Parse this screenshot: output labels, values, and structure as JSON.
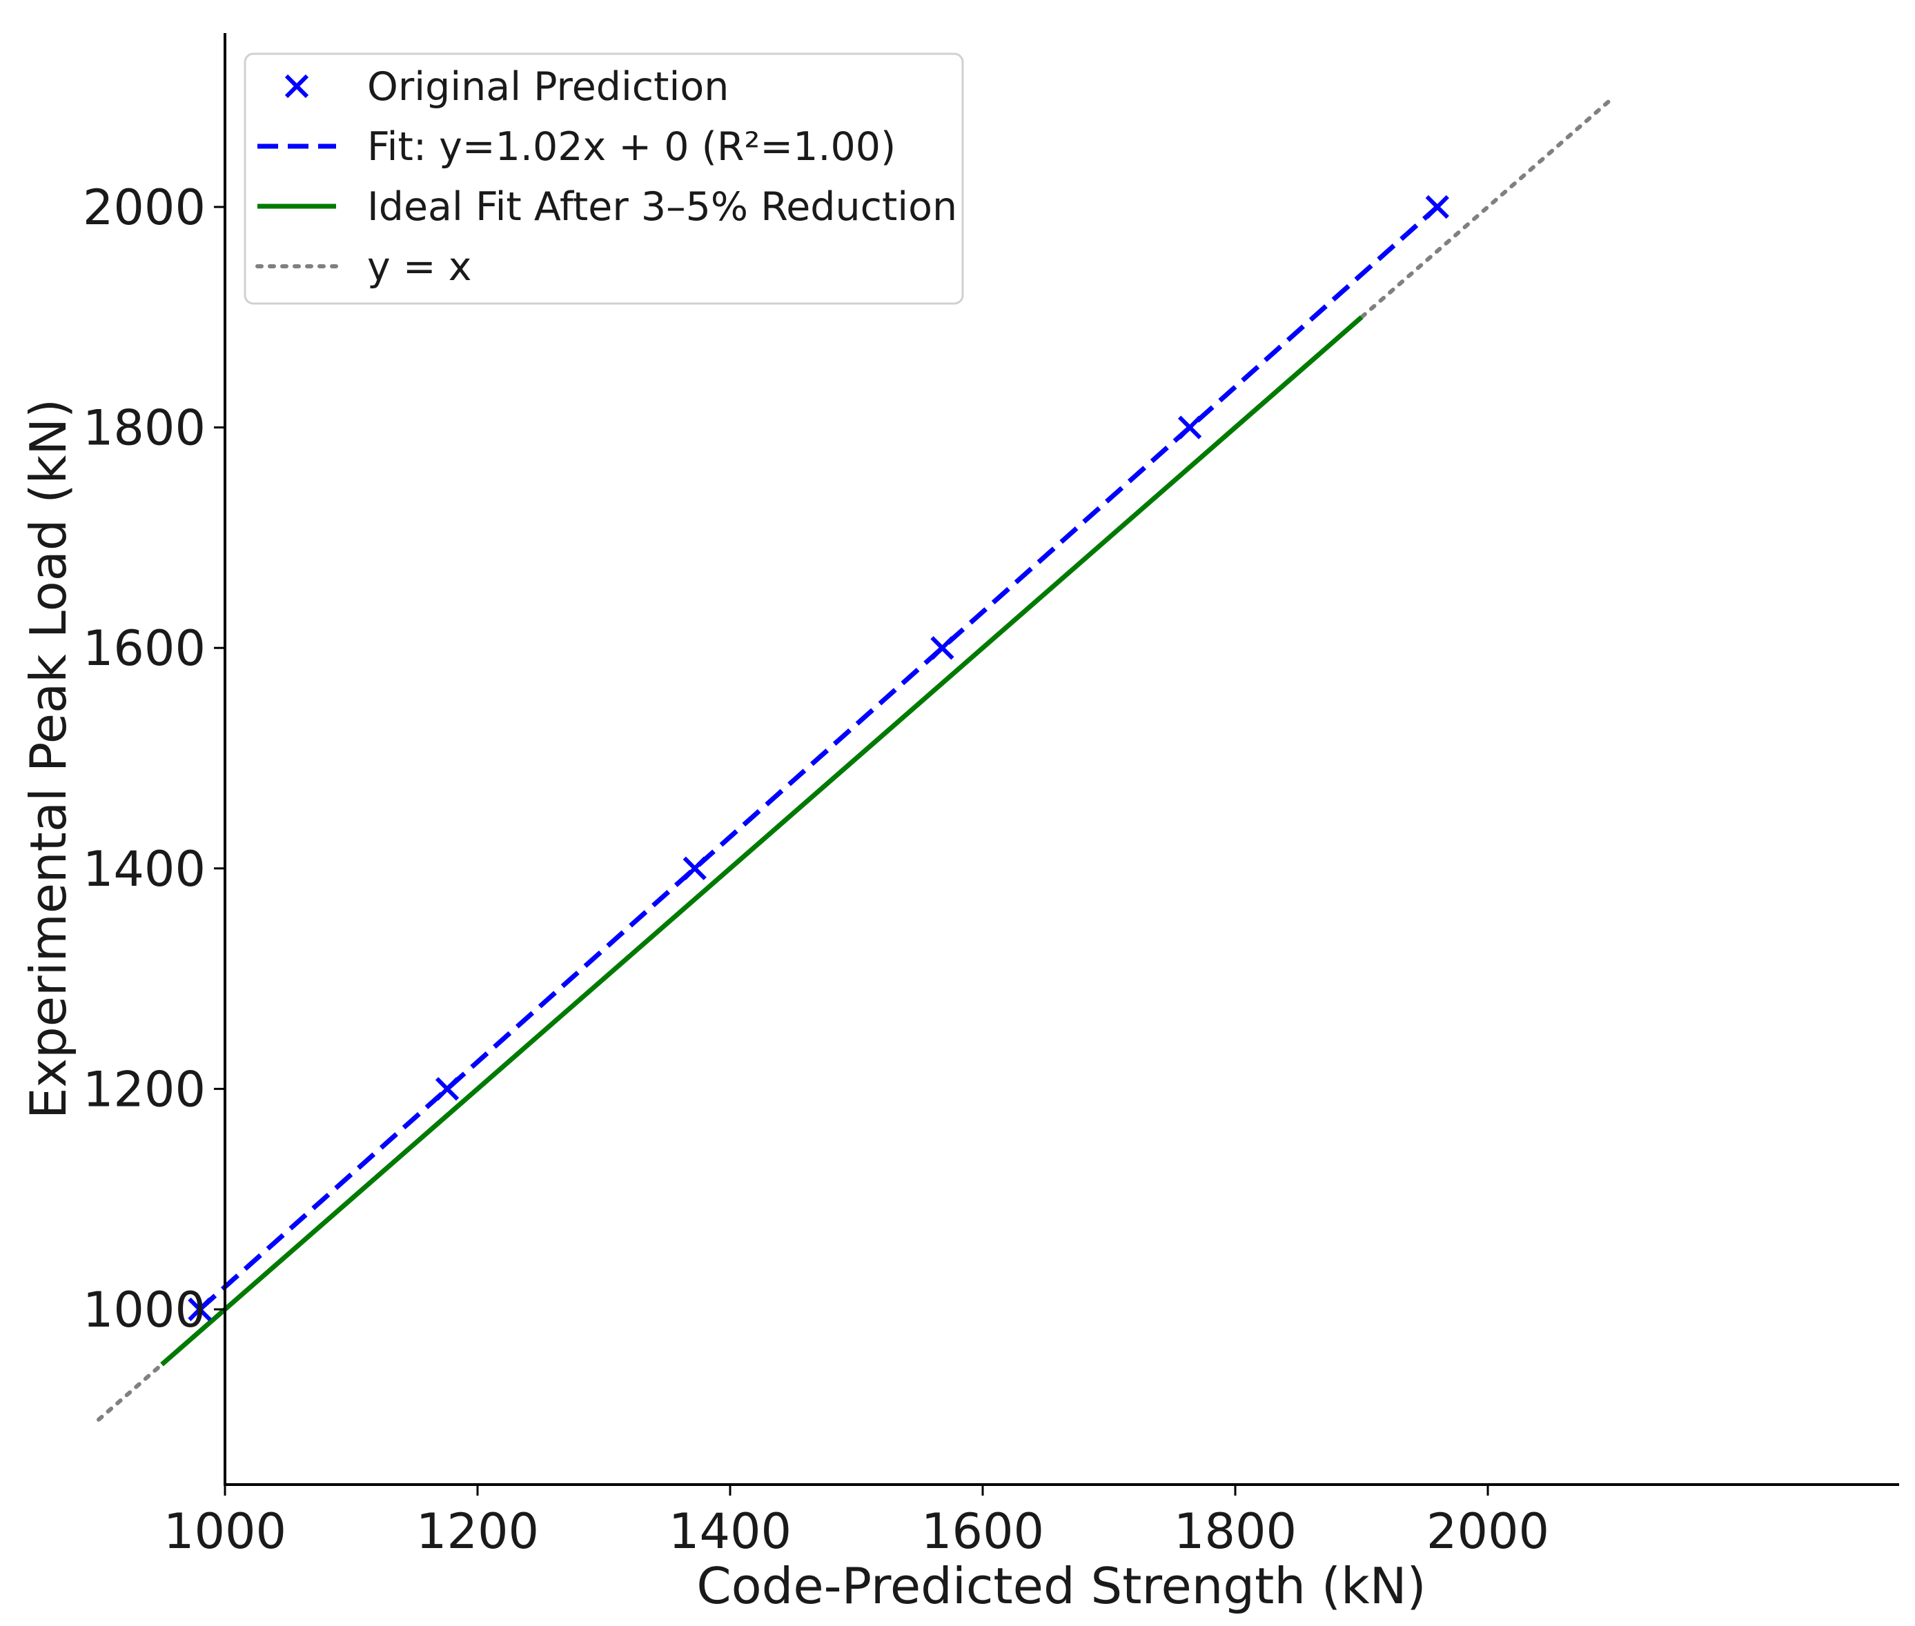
{
  "chart_data": {
    "type": "scatter",
    "title": "",
    "xlabel": "Code-Predicted Strength (kN)",
    "ylabel": "Experimental Peak Load (kN)",
    "xlim": [
      840,
      2160
    ],
    "ylim": [
      840,
      2160
    ],
    "xticks": [
      1000,
      1200,
      1400,
      1600,
      1800,
      2000
    ],
    "yticks": [
      1000,
      1200,
      1400,
      1600,
      1800,
      2000
    ],
    "xtick_labels": [
      "1000",
      "1200",
      "1400",
      "1600",
      "1800",
      "2000"
    ],
    "ytick_labels": [
      "1000",
      "1200",
      "1400",
      "1600",
      "1800",
      "2000"
    ],
    "grid": false,
    "legend_position": "top-left",
    "series": [
      {
        "name": "Original Prediction",
        "kind": "scatter",
        "marker": "x",
        "color": "#0000ff",
        "x": [
          980,
          1176,
          1372,
          1568,
          1764,
          1960
        ],
        "y": [
          1000,
          1200,
          1400,
          1600,
          1800,
          2000
        ]
      },
      {
        "name": "Fit: y=1.02x + 0 (R²=1.00)",
        "kind": "line",
        "style": "dashed",
        "color": "#0000ff",
        "x": [
          980,
          1960
        ],
        "y": [
          1000,
          2000
        ]
      },
      {
        "name": "Ideal Fit After 3–5% Reduction",
        "kind": "line",
        "style": "solid",
        "color": "#007a00",
        "x": [
          950,
          1900
        ],
        "y": [
          950,
          1900
        ]
      },
      {
        "name": "y = x",
        "kind": "line",
        "style": "dotted",
        "color": "#808080",
        "x": [
          900,
          2100
        ],
        "y": [
          900,
          2100
        ]
      }
    ]
  }
}
